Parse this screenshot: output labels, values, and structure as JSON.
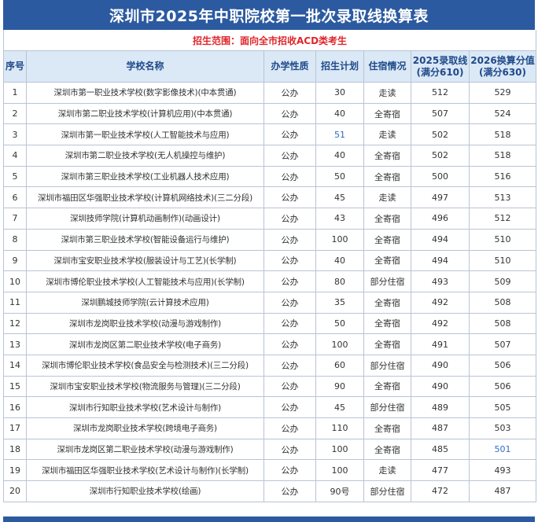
{
  "title": "深圳市2025年中职院校第一批次录取线换算表",
  "scope": "招生范围：面向全市招收ACD类考生",
  "columns": {
    "index": "序号",
    "school": "学校名称",
    "nature": "办学性质",
    "plan": "招生计划",
    "dorm": "住宿情况",
    "score2025_l1": "2025录取线",
    "score2025_l2": "(满分610)",
    "score2026_l1": "2026换算分值",
    "score2026_l2": "(满分630)"
  },
  "rows": [
    {
      "index": "1",
      "school": "深圳市第一职业技术学校(数字影像技术)(中本贯通)",
      "nature": "公办",
      "plan": "30",
      "dorm": "走读",
      "score2025": "512",
      "score2026": "529"
    },
    {
      "index": "2",
      "school": "深圳市第二职业技术学校(计算机应用)(中本贯通)",
      "nature": "公办",
      "plan": "40",
      "dorm": "全寄宿",
      "score2025": "507",
      "score2026": "524"
    },
    {
      "index": "3",
      "school": "深圳市第一职业技术学校(人工智能技术与应用)",
      "nature": "公办",
      "plan": "51",
      "dorm": "走读",
      "score2025": "502",
      "score2026": "518"
    },
    {
      "index": "4",
      "school": "深圳市第二职业技术学校(无人机操控与维护)",
      "nature": "公办",
      "plan": "40",
      "dorm": "全寄宿",
      "score2025": "502",
      "score2026": "518"
    },
    {
      "index": "5",
      "school": "深圳市第三职业技术学校(工业机器人技术应用)",
      "nature": "公办",
      "plan": "50",
      "dorm": "全寄宿",
      "score2025": "500",
      "score2026": "516"
    },
    {
      "index": "6",
      "school": "深圳市福田区华强职业技术学校(计算机网络技术)(三二分段)",
      "nature": "公办",
      "plan": "45",
      "dorm": "走读",
      "score2025": "497",
      "score2026": "513"
    },
    {
      "index": "7",
      "school": "深圳技师学院(计算机动画制作)(动画设计)",
      "nature": "公办",
      "plan": "43",
      "dorm": "全寄宿",
      "score2025": "496",
      "score2026": "512"
    },
    {
      "index": "8",
      "school": "深圳市第三职业技术学校(智能设备运行与维护)",
      "nature": "公办",
      "plan": "100",
      "dorm": "全寄宿",
      "score2025": "494",
      "score2026": "510"
    },
    {
      "index": "9",
      "school": "深圳市宝安职业技术学校(服装设计与工艺)(长学制)",
      "nature": "公办",
      "plan": "40",
      "dorm": "全寄宿",
      "score2025": "494",
      "score2026": "510"
    },
    {
      "index": "10",
      "school": "深圳市博伦职业技术学校(人工智能技术与应用)(长学制)",
      "nature": "公办",
      "plan": "80",
      "dorm": "部分住宿",
      "score2025": "493",
      "score2026": "509"
    },
    {
      "index": "11",
      "school": "深圳鹏城技师学院(云计算技术应用)",
      "nature": "公办",
      "plan": "35",
      "dorm": "全寄宿",
      "score2025": "492",
      "score2026": "508"
    },
    {
      "index": "12",
      "school": "深圳市龙岗职业技术学校(动漫与游戏制作)",
      "nature": "公办",
      "plan": "50",
      "dorm": "全寄宿",
      "score2025": "492",
      "score2026": "508"
    },
    {
      "index": "13",
      "school": "深圳市龙岗区第二职业技术学校(电子商务)",
      "nature": "公办",
      "plan": "100",
      "dorm": "全寄宿",
      "score2025": "491",
      "score2026": "507"
    },
    {
      "index": "14",
      "school": "深圳市博伦职业技术学校(食品安全与检测技术)(三二分段)",
      "nature": "公办",
      "plan": "60",
      "dorm": "部分住宿",
      "score2025": "490",
      "score2026": "506"
    },
    {
      "index": "15",
      "school": "深圳市宝安职业技术学校(物流服务与管理)(三二分段)",
      "nature": "公办",
      "plan": "90",
      "dorm": "全寄宿",
      "score2025": "490",
      "score2026": "506"
    },
    {
      "index": "16",
      "school": "深圳市行知职业技术学校(艺术设计与制作)",
      "nature": "公办",
      "plan": "45",
      "dorm": "部分住宿",
      "score2025": "489",
      "score2026": "505"
    },
    {
      "index": "17",
      "school": "深圳市龙岗职业技术学校(跨境电子商务)",
      "nature": "公办",
      "plan": "110",
      "dorm": "全寄宿",
      "score2025": "487",
      "score2026": "503"
    },
    {
      "index": "18",
      "school": "深圳市龙岗区第二职业技术学校(动漫与游戏制作)",
      "nature": "公办",
      "plan": "100",
      "dorm": "全寄宿",
      "score2025": "485",
      "score2026": "501"
    },
    {
      "index": "19",
      "school": "深圳市福田区华强职业技术学校(艺术设计与制作)(长学制)",
      "nature": "公办",
      "plan": "100",
      "dorm": "走读",
      "score2025": "477",
      "score2026": "493"
    },
    {
      "index": "20",
      "school": "深圳市行知职业技术学校(绘画)",
      "nature": "公办",
      "plan": "90号",
      "dorm": "部分住宿",
      "score2025": "472",
      "score2026": "487"
    }
  ],
  "colors": {
    "header_bg": "#2c5aa0",
    "scope_text": "#e0262a",
    "column_header_bg": "#dbe8f6",
    "column_header_text": "#1f4a8a",
    "grid_line": "#b8c4d6"
  }
}
